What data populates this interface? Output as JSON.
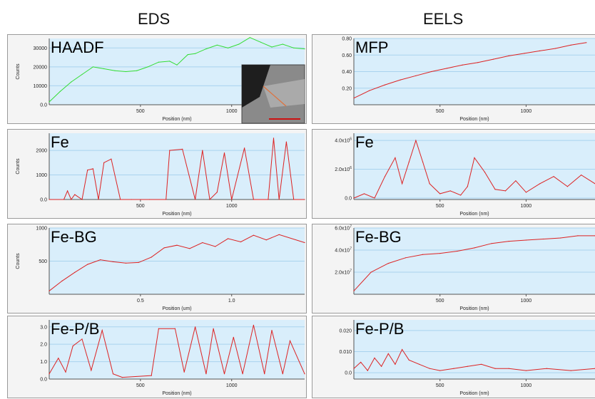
{
  "columns": {
    "left": "EDS",
    "right": "EELS"
  },
  "chart_data": [
    {
      "id": "haadf",
      "type": "line",
      "label": "HAADF",
      "color": "#33dd33",
      "ylabel": "Counts",
      "xlabel": "Position (nm)",
      "xlim": [
        0,
        1400
      ],
      "ylim": [
        0,
        35000
      ],
      "yticks": [
        {
          "v": 0,
          "t": "0.0"
        },
        {
          "v": 10000,
          "t": "10000"
        },
        {
          "v": 20000,
          "t": "20000"
        },
        {
          "v": 30000,
          "t": "30000"
        }
      ],
      "xticks": [
        {
          "v": 500,
          "t": "500"
        },
        {
          "v": 1000,
          "t": "1000"
        }
      ],
      "series": [
        {
          "values": [
            1500,
            7000,
            12000,
            16000,
            20000,
            19000,
            18000,
            17500,
            18000,
            20000,
            22500,
            23000,
            21000,
            26500,
            27000,
            29500,
            31500,
            30000,
            32000,
            35500,
            33000,
            30500,
            32000,
            30000,
            29500
          ],
          "x": [
            0,
            60,
            120,
            180,
            240,
            300,
            360,
            420,
            480,
            540,
            600,
            660,
            700,
            760,
            800,
            860,
            920,
            980,
            1040,
            1100,
            1160,
            1220,
            1280,
            1340,
            1400
          ]
        }
      ],
      "inset": true
    },
    {
      "id": "mfp",
      "type": "line",
      "label": "MFP",
      "color": "#dd2222",
      "ylabel": "",
      "xlabel": "Position (nm)",
      "xlim": [
        0,
        1400
      ],
      "ylim": [
        0,
        0.8
      ],
      "yticks": [
        {
          "v": 0.2,
          "t": "0.20"
        },
        {
          "v": 0.4,
          "t": "0.40"
        },
        {
          "v": 0.6,
          "t": "0.60"
        },
        {
          "v": 0.8,
          "t": "0.80"
        }
      ],
      "xticks": [
        {
          "v": 500,
          "t": "500"
        },
        {
          "v": 1000,
          "t": "1000"
        }
      ],
      "series": [
        {
          "values": [
            0.08,
            0.17,
            0.24,
            0.3,
            0.35,
            0.4,
            0.44,
            0.48,
            0.51,
            0.55,
            0.59,
            0.62,
            0.65,
            0.68,
            0.72,
            0.75
          ],
          "x": [
            0,
            90,
            180,
            270,
            360,
            450,
            540,
            630,
            720,
            810,
            900,
            990,
            1080,
            1170,
            1260,
            1350
          ]
        }
      ]
    },
    {
      "id": "fe-eds",
      "type": "line",
      "label": "Fe",
      "color": "#dd2222",
      "ylabel": "Counts",
      "xlabel": "Position (nm)",
      "xlim": [
        0,
        1400
      ],
      "ylim": [
        0,
        2700
      ],
      "yticks": [
        {
          "v": 0,
          "t": "0.0"
        },
        {
          "v": 1000,
          "t": "1000"
        },
        {
          "v": 2000,
          "t": "2000"
        }
      ],
      "xticks": [
        {
          "v": 500,
          "t": "500"
        },
        {
          "v": 1000,
          "t": "1000"
        }
      ],
      "series": [
        {
          "values": [
            0,
            0,
            350,
            0,
            200,
            0,
            1200,
            1250,
            0,
            1500,
            1650,
            0,
            0,
            0,
            0,
            2000,
            2050,
            0,
            2000,
            0,
            300,
            1900,
            0,
            2100,
            0,
            0,
            2500,
            0,
            2350,
            0,
            0
          ],
          "x": [
            0,
            80,
            100,
            120,
            140,
            180,
            210,
            240,
            270,
            300,
            340,
            390,
            450,
            550,
            640,
            660,
            730,
            800,
            840,
            880,
            920,
            960,
            1000,
            1070,
            1120,
            1200,
            1230,
            1260,
            1300,
            1340,
            1400
          ]
        }
      ]
    },
    {
      "id": "fe-eels",
      "type": "line",
      "label": "Fe",
      "color": "#dd2222",
      "ylabel": "",
      "xlabel": "Position (nm)",
      "xlim": [
        0,
        1400
      ],
      "ylim": [
        -100000.0,
        4500000.0
      ],
      "yticks": [
        {
          "v": 0,
          "t": "0.0"
        },
        {
          "v": 2000000,
          "t": "2.0x10^6"
        },
        {
          "v": 4000000,
          "t": "4.0x10^6"
        }
      ],
      "xticks": [
        {
          "v": 500,
          "t": "500"
        },
        {
          "v": 1000,
          "t": "1000"
        }
      ],
      "series": [
        {
          "values": [
            0,
            300000.0,
            0,
            1500000.0,
            2800000.0,
            1000000.0,
            2500000.0,
            4000000.0,
            2500000.0,
            1000000.0,
            300000.0,
            500000.0,
            200000.0,
            800000.0,
            2800000.0,
            1800000.0,
            600000.0,
            500000.0,
            1200000.0,
            400000.0,
            1000000.0,
            1500000.0,
            800000.0,
            1600000.0,
            1000000.0
          ],
          "x": [
            0,
            60,
            120,
            180,
            240,
            280,
            320,
            360,
            400,
            440,
            500,
            560,
            620,
            660,
            700,
            760,
            820,
            880,
            940,
            1000,
            1080,
            1160,
            1240,
            1320,
            1400
          ]
        }
      ]
    },
    {
      "id": "febg-eds",
      "type": "line",
      "label": "Fe-BG",
      "color": "#dd2222",
      "ylabel": "Counts",
      "xlabel": "Position (um)",
      "xlim": [
        0,
        1.4
      ],
      "ylim": [
        0,
        1000
      ],
      "yticks": [
        {
          "v": 500,
          "t": "500"
        },
        {
          "v": 1000,
          "t": "1000"
        }
      ],
      "xticks": [
        {
          "v": 0.5,
          "t": "0.5"
        },
        {
          "v": 1.0,
          "t": "1.0"
        }
      ],
      "series": [
        {
          "values": [
            50,
            200,
            330,
            450,
            520,
            490,
            470,
            480,
            560,
            700,
            740,
            690,
            780,
            720,
            840,
            790,
            890,
            820,
            900,
            780
          ],
          "x": [
            0,
            0.07,
            0.14,
            0.21,
            0.28,
            0.35,
            0.42,
            0.49,
            0.56,
            0.63,
            0.7,
            0.77,
            0.84,
            0.91,
            0.98,
            1.05,
            1.12,
            1.19,
            1.26,
            1.4
          ]
        }
      ]
    },
    {
      "id": "febg-eels",
      "type": "line",
      "label": "Fe-BG",
      "color": "#dd2222",
      "ylabel": "",
      "xlabel": "Position (nm)",
      "xlim": [
        0,
        1400
      ],
      "ylim": [
        0,
        60000000.0
      ],
      "yticks": [
        {
          "v": 20000000,
          "t": "2.0x10^7"
        },
        {
          "v": 40000000,
          "t": "4.0x10^7"
        },
        {
          "v": 60000000,
          "t": "6.0x10^7"
        }
      ],
      "xticks": [
        {
          "v": 500,
          "t": "500"
        },
        {
          "v": 1000,
          "t": "1000"
        }
      ],
      "series": [
        {
          "values": [
            3000000.0,
            20000000.0,
            28000000.0,
            33000000.0,
            36000000.0,
            37000000.0,
            39000000.0,
            42000000.0,
            46000000.0,
            48000000.0,
            49000000.0,
            50000000.0,
            51000000.0,
            53000000.0,
            53000000.0
          ],
          "x": [
            0,
            100,
            200,
            300,
            400,
            500,
            600,
            700,
            800,
            900,
            1000,
            1100,
            1200,
            1300,
            1400
          ]
        }
      ]
    },
    {
      "id": "fepb-eds",
      "type": "line",
      "label": "Fe-P/B",
      "color": "#dd2222",
      "ylabel": "",
      "xlabel": "Position (nm)",
      "xlim": [
        0,
        1400
      ],
      "ylim": [
        0,
        3.4
      ],
      "yticks": [
        {
          "v": 0,
          "t": "0.0"
        },
        {
          "v": 1,
          "t": "1.0"
        },
        {
          "v": 2,
          "t": "2.0"
        },
        {
          "v": 3,
          "t": "3.0"
        }
      ],
      "xticks": [
        {
          "v": 500,
          "t": "500"
        },
        {
          "v": 1000,
          "t": "1000"
        }
      ],
      "series": [
        {
          "values": [
            0.3,
            1.2,
            0.4,
            1.9,
            2.3,
            0.5,
            2.8,
            0.3,
            0.1,
            0.2,
            2.9,
            2.9,
            0.4,
            3.0,
            0.3,
            2.9,
            0.3,
            2.4,
            0.3,
            3.1,
            0.3,
            2.8,
            0.3,
            2.2,
            0.3
          ],
          "x": [
            0,
            50,
            90,
            130,
            180,
            230,
            290,
            350,
            400,
            560,
            600,
            690,
            740,
            800,
            860,
            900,
            960,
            1010,
            1060,
            1120,
            1180,
            1220,
            1280,
            1320,
            1400
          ]
        }
      ]
    },
    {
      "id": "fepb-eels",
      "type": "line",
      "label": "Fe-P/B",
      "color": "#dd2222",
      "ylabel": "",
      "xlabel": "Position (nm)",
      "xlim": [
        0,
        1400
      ],
      "ylim": [
        -0.003,
        0.025
      ],
      "yticks": [
        {
          "v": 0,
          "t": "0.0"
        },
        {
          "v": 0.01,
          "t": "0.010"
        },
        {
          "v": 0.02,
          "t": "0.020"
        }
      ],
      "xticks": [
        {
          "v": 500,
          "t": "500"
        },
        {
          "v": 1000,
          "t": "1000"
        }
      ],
      "series": [
        {
          "values": [
            0.002,
            0.005,
            0.001,
            0.007,
            0.003,
            0.009,
            0.004,
            0.011,
            0.006,
            0.004,
            0.002,
            0.001,
            0.002,
            0.003,
            0.004,
            0.002,
            0.002,
            0.001,
            0.002,
            0.001,
            0.002
          ],
          "x": [
            0,
            40,
            80,
            120,
            160,
            200,
            240,
            280,
            320,
            380,
            440,
            500,
            580,
            660,
            740,
            820,
            900,
            1000,
            1120,
            1260,
            1400
          ]
        }
      ]
    }
  ]
}
